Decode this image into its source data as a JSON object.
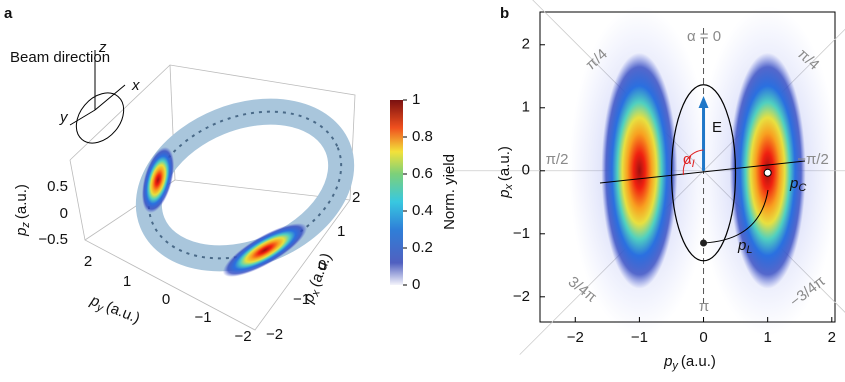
{
  "chart_data": [
    {
      "type": "surface3d",
      "panel": "a",
      "inset": {
        "title": "Beam direction",
        "axes": [
          "z",
          "x",
          "y"
        ]
      },
      "zlabel": {
        "symbol": "p",
        "sub": "z",
        "unit": "(a.u.)"
      },
      "ylabel": {
        "symbol": "p",
        "sub": "y",
        "unit": "(a.u.)"
      },
      "xlabel": {
        "symbol": "p",
        "sub": "x",
        "unit": "(a.u.)"
      },
      "zticks": [
        0.5,
        0,
        {
          "value": -0.5,
          "label": "−0.5"
        }
      ],
      "yticks": [
        2,
        1,
        0,
        {
          "value": -1,
          "label": "−1"
        },
        {
          "value": -2,
          "label": "−2"
        }
      ],
      "xticks": [
        2,
        1,
        0,
        {
          "value": -1,
          "label": "−1"
        },
        {
          "value": -2,
          "label": "−2"
        }
      ],
      "colorbar": {
        "label": "Norm. yield",
        "lim": [
          0,
          1
        ],
        "ticks": [
          0,
          0.2,
          0.4,
          0.6,
          0.8,
          1
        ]
      }
    },
    {
      "type": "density",
      "panel": "b",
      "xlim": [
        -2.55,
        2.05
      ],
      "ylim": [
        -2.4,
        2.52
      ],
      "xticks": [
        {
          "value": -2,
          "label": "−2"
        },
        {
          "value": -1,
          "label": "−1"
        },
        0,
        1,
        2
      ],
      "yticks": [
        {
          "value": -2,
          "label": "−2"
        },
        {
          "value": -1,
          "label": "−1"
        },
        0,
        1,
        2
      ],
      "xlabel": {
        "symbol": "p",
        "sub": "y",
        "unit": "(a.u.)"
      },
      "ylabel": {
        "symbol": "p",
        "sub": "x",
        "unit": "(a.u.)"
      },
      "x": [
        -1,
        1
      ],
      "y": [
        0,
        0
      ],
      "annotations": [
        "α = 0",
        "π/4",
        "π/4",
        "π/2",
        "−π/2",
        "3/4π",
        "−3/4π",
        "π",
        "E"
      ],
      "alpha": {
        "symbol": "α",
        "sub": "I"
      },
      "pc": {
        "symbol": "p",
        "sub": "C"
      },
      "pl": {
        "symbol": "p",
        "sub": "L"
      }
    }
  ]
}
